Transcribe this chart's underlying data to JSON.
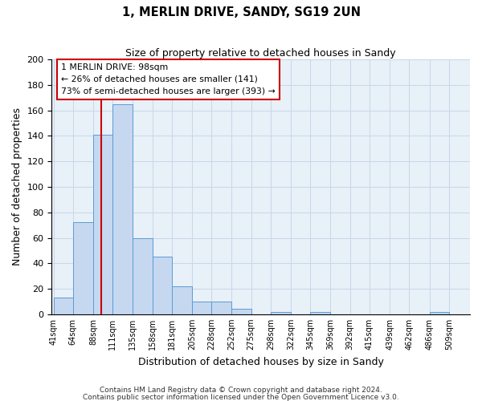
{
  "title": "1, MERLIN DRIVE, SANDY, SG19 2UN",
  "subtitle": "Size of property relative to detached houses in Sandy",
  "xlabel": "Distribution of detached houses by size in Sandy",
  "ylabel": "Number of detached properties",
  "footnote1": "Contains HM Land Registry data © Crown copyright and database right 2024.",
  "footnote2": "Contains public sector information licensed under the Open Government Licence v3.0.",
  "bin_labels": [
    "41sqm",
    "64sqm",
    "88sqm",
    "111sqm",
    "135sqm",
    "158sqm",
    "181sqm",
    "205sqm",
    "228sqm",
    "252sqm",
    "275sqm",
    "298sqm",
    "322sqm",
    "345sqm",
    "369sqm",
    "392sqm",
    "415sqm",
    "439sqm",
    "462sqm",
    "486sqm",
    "509sqm"
  ],
  "bin_edges": [
    41,
    64,
    88,
    111,
    135,
    158,
    181,
    205,
    228,
    252,
    275,
    298,
    322,
    345,
    369,
    392,
    415,
    439,
    462,
    486,
    509
  ],
  "counts": [
    13,
    72,
    141,
    165,
    60,
    45,
    22,
    10,
    10,
    4,
    0,
    2,
    0,
    2,
    0,
    0,
    0,
    0,
    0,
    2
  ],
  "bar_color": "#c5d8f0",
  "bar_edge_color": "#5b9bd5",
  "property_size": 98,
  "red_line_color": "#cc0000",
  "annotation_line1": "1 MERLIN DRIVE: 98sqm",
  "annotation_line2": "← 26% of detached houses are smaller (141)",
  "annotation_line3": "73% of semi-detached houses are larger (393) →",
  "annotation_box_color": "#ffffff",
  "annotation_box_edge": "#cc0000",
  "ylim": [
    0,
    200
  ],
  "yticks": [
    0,
    20,
    40,
    60,
    80,
    100,
    120,
    140,
    160,
    180,
    200
  ],
  "grid_color": "#c8d8e8",
  "background_color": "#e8f0f8"
}
